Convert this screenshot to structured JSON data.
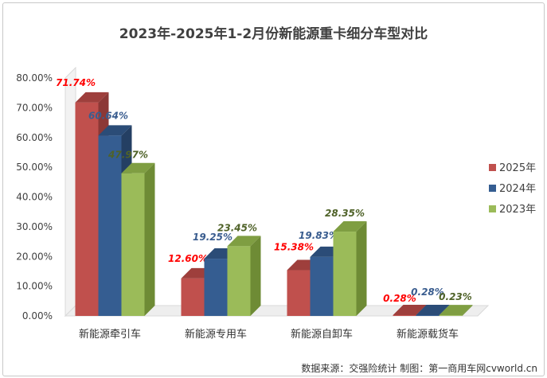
{
  "chart_data": {
    "type": "bar",
    "title": "2023年-2025年1-2月份新能源重卡细分车型对比",
    "categories": [
      "新能源牵引车",
      "新能源专用车",
      "新能源自卸车",
      "新能源载货车"
    ],
    "series": [
      {
        "name": "2025年",
        "values": [
          71.74,
          12.6,
          15.38,
          0.28
        ],
        "labels": [
          "71.74%",
          "12.60%",
          "15.38%",
          "0.28%"
        ]
      },
      {
        "name": "2024年",
        "values": [
          60.64,
          19.25,
          19.83,
          0.28
        ],
        "labels": [
          "60.64%",
          "19.25%",
          "19.83%",
          "0.28%"
        ]
      },
      {
        "name": "2023年",
        "values": [
          47.97,
          23.45,
          28.35,
          0.23
        ],
        "labels": [
          "47.97%",
          "23.45%",
          "28.35%",
          "0.23%"
        ]
      }
    ],
    "ylim": [
      0,
      80
    ],
    "yticks": [
      "0.00%",
      "10.00%",
      "20.00%",
      "30.00%",
      "40.00%",
      "50.00%",
      "60.00%",
      "70.00%",
      "80.00%"
    ],
    "grid": false,
    "legend_position": "right",
    "colors": {
      "2025年": {
        "front": "#c0504d",
        "side": "#8c3836",
        "top": "#9e3f3c",
        "label": "#ff0000"
      },
      "2024年": {
        "front": "#355d91",
        "side": "#243f63",
        "top": "#2b4c77",
        "label": "#3a5d8f"
      },
      "2023年": {
        "front": "#9bbb59",
        "side": "#6e8b35",
        "top": "#7f9e42",
        "label": "#4f6228"
      }
    },
    "source": "数据来源：交强险统计  制图：第一商用车网cvworld.cn"
  }
}
